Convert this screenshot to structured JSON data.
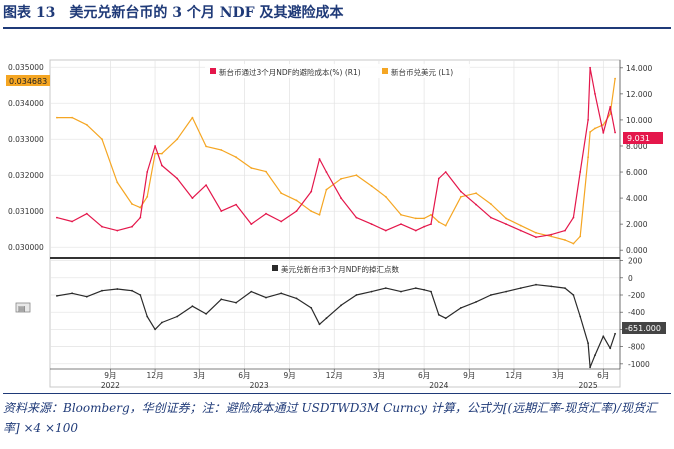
{
  "figure": {
    "title": "图表 13　美元兑新台币的 3 个月 NDF 及其避险成本",
    "source": "资料来源：Bloomberg，华创证券；注：避险成本通过 USDTWD3M Curncy 计算，公式为[(远期汇率-现货汇率)/现货汇率] ×4 ×100",
    "side_icon_text": "▤"
  },
  "colors": {
    "hedge": "#e4174b",
    "spot": "#f5a623",
    "points": "#2a2a2a",
    "title": "#1f3a78",
    "axis": "#555555",
    "grid": "#e2e2e2"
  },
  "chart_data": [
    {
      "type": "line",
      "name": "top-panel",
      "legend_position": "top-center",
      "legend": [
        "新台币通过3个月NDF的避险成本(%) (R1)",
        "新台币兑美元 (L1)"
      ],
      "y_left": {
        "range": [
          0.0297,
          0.0352
        ],
        "ticks": [
          "0.035000",
          "0.034000",
          "0.033000",
          "0.032000",
          "0.031000",
          "0.030000"
        ],
        "tick_values": [
          0.035,
          0.034,
          0.033,
          0.032,
          0.031,
          0.03
        ]
      },
      "y_right": {
        "range": [
          -0.6,
          14.6
        ],
        "ticks": [
          "14.000",
          "12.000",
          "10.000",
          "8.000",
          "6.000",
          "4.000",
          "2.000",
          "0.000"
        ],
        "tick_values": [
          14,
          12,
          10,
          8,
          6,
          4,
          2,
          0
        ]
      },
      "last_value_labels": {
        "left": "0.034683",
        "right": "9.031"
      },
      "series": [
        {
          "name": "新台币通过3个月NDF的避险成本(%) (R1)",
          "axis": "right",
          "x": [
            "2022-05-15",
            "2022-06-15",
            "2022-07-15",
            "2022-08-15",
            "2022-09-15",
            "2022-10-15",
            "2022-11-01",
            "2022-11-15",
            "2022-12-01",
            "2022-12-15",
            "2023-01-15",
            "2023-02-15",
            "2023-03-15",
            "2023-04-15",
            "2023-05-15",
            "2023-06-15",
            "2023-07-15",
            "2023-08-15",
            "2023-09-15",
            "2023-10-15",
            "2023-11-01",
            "2023-11-15",
            "2023-12-15",
            "2024-01-15",
            "2024-02-15",
            "2024-03-15",
            "2024-04-15",
            "2024-05-15",
            "2024-06-01",
            "2024-06-15",
            "2024-07-01",
            "2024-07-15",
            "2024-08-15",
            "2024-09-15",
            "2024-10-15",
            "2024-11-15",
            "2024-12-15",
            "2025-01-15",
            "2025-02-15",
            "2025-03-15",
            "2025-04-01",
            "2025-04-15",
            "2025-05-01",
            "2025-05-05",
            "2025-05-15",
            "2025-06-01",
            "2025-06-15",
            "2025-06-25"
          ],
          "y": [
            2.5,
            2.2,
            2.8,
            1.8,
            1.5,
            1.8,
            2.5,
            6.0,
            8.0,
            6.5,
            5.5,
            4.0,
            5.0,
            3.0,
            3.5,
            2.0,
            2.8,
            2.2,
            3.0,
            4.5,
            7.0,
            6.0,
            4.0,
            2.5,
            2.0,
            1.5,
            2.0,
            1.5,
            1.8,
            2.0,
            5.5,
            6.0,
            4.5,
            3.5,
            2.5,
            2.0,
            1.5,
            1.0,
            1.2,
            1.5,
            2.5,
            6.0,
            10.0,
            14.0,
            12.0,
            9.0,
            11.0,
            9.031
          ]
        },
        {
          "name": "新台币兑美元 (L1)",
          "axis": "left",
          "x": [
            "2022-05-15",
            "2022-06-15",
            "2022-07-15",
            "2022-08-15",
            "2022-09-15",
            "2022-10-15",
            "2022-11-01",
            "2022-11-15",
            "2022-12-01",
            "2022-12-15",
            "2023-01-15",
            "2023-02-15",
            "2023-03-15",
            "2023-04-15",
            "2023-05-15",
            "2023-06-15",
            "2023-07-15",
            "2023-08-15",
            "2023-09-15",
            "2023-10-15",
            "2023-11-01",
            "2023-11-15",
            "2023-12-15",
            "2024-01-15",
            "2024-02-15",
            "2024-03-15",
            "2024-04-15",
            "2024-05-15",
            "2024-06-01",
            "2024-06-15",
            "2024-07-01",
            "2024-07-15",
            "2024-08-15",
            "2024-09-15",
            "2024-10-15",
            "2024-11-15",
            "2024-12-15",
            "2025-01-15",
            "2025-02-15",
            "2025-03-15",
            "2025-04-01",
            "2025-04-15",
            "2025-05-01",
            "2025-05-05",
            "2025-05-15",
            "2025-06-01",
            "2025-06-15",
            "2025-06-25"
          ],
          "y": [
            0.0336,
            0.0336,
            0.0334,
            0.033,
            0.0318,
            0.0312,
            0.0311,
            0.0314,
            0.0326,
            0.0326,
            0.033,
            0.0336,
            0.0328,
            0.0327,
            0.0325,
            0.0322,
            0.0321,
            0.0315,
            0.0313,
            0.031,
            0.0309,
            0.0316,
            0.0319,
            0.032,
            0.0317,
            0.0314,
            0.0309,
            0.0308,
            0.0308,
            0.0309,
            0.0307,
            0.0306,
            0.0314,
            0.0315,
            0.0312,
            0.0308,
            0.0306,
            0.0304,
            0.0303,
            0.0302,
            0.0301,
            0.0303,
            0.0325,
            0.0332,
            0.0333,
            0.0334,
            0.0337,
            0.034683
          ]
        }
      ]
    },
    {
      "type": "line",
      "name": "bottom-panel",
      "legend_position": "top-center",
      "legend": [
        "美元兑新台币3个月NDF的掉汇点数"
      ],
      "y_right": {
        "range": [
          -1060,
          230
        ],
        "ticks": [
          "200",
          "0",
          "-200",
          "-400",
          "-600",
          "-800",
          "-1000"
        ],
        "tick_values": [
          200,
          0,
          -200,
          -400,
          -600,
          -800,
          -1000
        ]
      },
      "last_value_label": "-651.000",
      "x_ticks": [
        {
          "label": "9月",
          "date": "2022-09-01"
        },
        {
          "label": "12月",
          "date": "2022-12-01"
        },
        {
          "label": "3月",
          "date": "2023-03-01"
        },
        {
          "label": "6月",
          "date": "2023-06-01"
        },
        {
          "label": "9月",
          "date": "2023-09-01"
        },
        {
          "label": "12月",
          "date": "2023-12-01"
        },
        {
          "label": "3月",
          "date": "2024-03-01"
        },
        {
          "label": "6月",
          "date": "2024-06-01"
        },
        {
          "label": "9月",
          "date": "2024-09-01"
        },
        {
          "label": "12月",
          "date": "2024-12-01"
        },
        {
          "label": "3月",
          "date": "2025-03-01"
        },
        {
          "label": "6月",
          "date": "2025-06-01"
        }
      ],
      "year_labels": [
        {
          "label": "2022",
          "date": "2022-09-01"
        },
        {
          "label": "2023",
          "date": "2023-07-01"
        },
        {
          "label": "2024",
          "date": "2024-07-01"
        },
        {
          "label": "2025",
          "date": "2025-05-01"
        }
      ],
      "x_range": [
        "2022-05-01",
        "2025-07-05"
      ],
      "series": [
        {
          "name": "美元兑新台币3个月NDF的掉汇点数",
          "x": [
            "2022-05-15",
            "2022-06-15",
            "2022-07-15",
            "2022-08-15",
            "2022-09-15",
            "2022-10-15",
            "2022-11-01",
            "2022-11-15",
            "2022-12-01",
            "2022-12-15",
            "2023-01-15",
            "2023-02-15",
            "2023-03-15",
            "2023-04-15",
            "2023-05-15",
            "2023-06-15",
            "2023-07-15",
            "2023-08-15",
            "2023-09-15",
            "2023-10-15",
            "2023-11-01",
            "2023-11-15",
            "2023-12-15",
            "2024-01-15",
            "2024-02-15",
            "2024-03-15",
            "2024-04-15",
            "2024-05-15",
            "2024-06-01",
            "2024-06-15",
            "2024-07-01",
            "2024-07-15",
            "2024-08-15",
            "2024-09-15",
            "2024-10-15",
            "2024-11-15",
            "2024-12-15",
            "2025-01-15",
            "2025-02-15",
            "2025-03-15",
            "2025-04-01",
            "2025-04-15",
            "2025-05-01",
            "2025-05-05",
            "2025-05-15",
            "2025-06-01",
            "2025-06-15",
            "2025-06-25"
          ],
          "y": [
            -210,
            -180,
            -220,
            -150,
            -130,
            -150,
            -200,
            -450,
            -600,
            -520,
            -450,
            -330,
            -420,
            -250,
            -290,
            -160,
            -230,
            -180,
            -240,
            -350,
            -540,
            -470,
            -320,
            -200,
            -160,
            -120,
            -160,
            -120,
            -140,
            -160,
            -430,
            -470,
            -350,
            -280,
            -200,
            -160,
            -120,
            -80,
            -100,
            -120,
            -200,
            -450,
            -760,
            -1040,
            -900,
            -680,
            -820,
            -651
          ]
        }
      ]
    }
  ]
}
